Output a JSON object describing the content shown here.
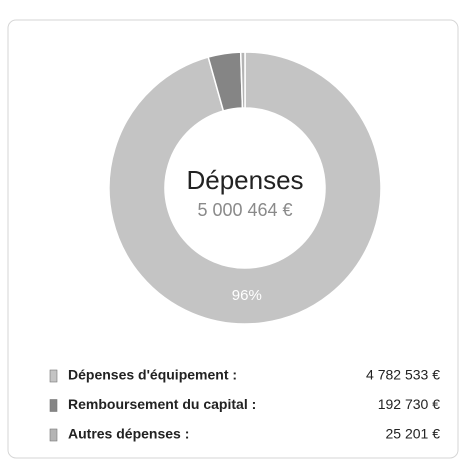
{
  "chart_data": {
    "type": "donut",
    "title": "Dépenses",
    "total_label": "5 000 464 €",
    "categories": [
      "Dépenses d'équipement :",
      "Remboursement du capital :",
      "Autres dépenses :"
    ],
    "values": [
      4782533,
      192730,
      25201
    ],
    "value_labels": [
      "4 782 533 €",
      "192 730 €",
      "25 201 €"
    ],
    "percent_labels": [
      "96%",
      null,
      null
    ],
    "colors": [
      "#c4c4c4",
      "#858585",
      "#b4b4b4"
    ]
  }
}
